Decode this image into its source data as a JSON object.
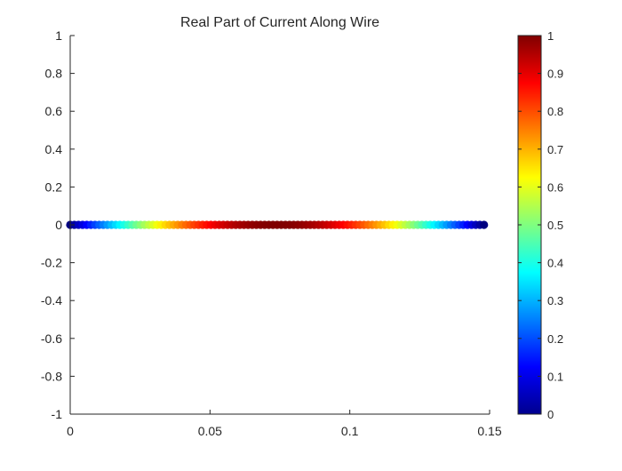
{
  "chart_data": {
    "type": "scatter",
    "title": "Real Part of Current Along Wire",
    "xlabel": "",
    "ylabel": "",
    "xlim": [
      0,
      0.15
    ],
    "ylim": [
      -1,
      1
    ],
    "xticks": [
      "0",
      "0.05",
      "0.1",
      "0.15"
    ],
    "yticks": [
      "1",
      "0.8",
      "0.6",
      "0.4",
      "0.2",
      "0",
      "-0.2",
      "-0.4",
      "-0.6",
      "-0.8",
      "-1"
    ],
    "grid": false,
    "colormap": "jet",
    "colorbar": {
      "range": [
        0,
        1
      ],
      "ticks": [
        "1",
        "0.9",
        "0.8",
        "0.7",
        "0.6",
        "0.5",
        "0.4",
        "0.3",
        "0.2",
        "0.1",
        "0"
      ]
    },
    "points": {
      "x_start": 0,
      "x_end": 0.148,
      "count": 101,
      "y": 0,
      "color_value": "sin(pi * x / 0.148)"
    },
    "colors": {
      "axis": "#262626",
      "background": "#ffffff"
    }
  }
}
